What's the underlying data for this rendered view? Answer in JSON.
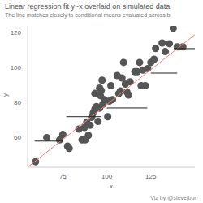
{
  "chart_data": {
    "type": "scatter",
    "title": "Linear regression fit y~x overlaid on simulated data",
    "subtitle": "The line matches closely to conditional means evaluated across b",
    "caption": "Viz by @stevejburr",
    "x_label": "x",
    "y_label": "y",
    "x": [
      59.5,
      65.9,
      73.2,
      75.0,
      77.7,
      78.6,
      84.1,
      85.9,
      87.3,
      87.7,
      88.6,
      89.5,
      90.5,
      91.4,
      92.3,
      93.2,
      93.2,
      94.1,
      95.0,
      95.9,
      95.9,
      96.4,
      96.8,
      97.3,
      97.7,
      98.6,
      100.5,
      101.4,
      102.3,
      103.2,
      105.9,
      106.8,
      107.7,
      108.6,
      109.5,
      110.5,
      111.4,
      112.3,
      113.2,
      115.9,
      117.3,
      118.6,
      119.5,
      120.5,
      121.8,
      123.2,
      125.0,
      126.8,
      127.7,
      131.4,
      133.2,
      135.5,
      137.7,
      140.0,
      143.2
    ],
    "y": [
      46.2,
      60.0,
      58.7,
      61.8,
      55.1,
      53.8,
      64.9,
      58.7,
      65.8,
      58.7,
      68.9,
      61.3,
      67.1,
      71.6,
      74.2,
      85.3,
      76.4,
      77.8,
      69.3,
      88.4,
      76.9,
      84.0,
      87.1,
      92.9,
      79.1,
      81.8,
      72.0,
      80.9,
      89.8,
      81.8,
      95.6,
      85.3,
      86.7,
      94.2,
      103.1,
      90.7,
      86.2,
      84.4,
      92.0,
      97.8,
      97.8,
      103.1,
      89.8,
      98.7,
      89.8,
      99.6,
      103.1,
      104.9,
      111.1,
      114.2,
      109.3,
      113.8,
      122.7,
      112.0,
      112.0
    ],
    "color": "#555555",
    "marker": "circle",
    "xlim": [
      55,
      150
    ],
    "ylim": [
      43,
      124
    ],
    "xticks": [
      75,
      100,
      125
    ],
    "yticks": [
      60,
      80,
      100,
      120
    ],
    "grid": false,
    "fit_line": {
      "x": [
        55,
        150
      ],
      "y": [
        43,
        119
      ],
      "color": "#f08080"
    },
    "conditional_means": {
      "color": "#222222",
      "segments": [
        {
          "x": [
            59,
            75
          ],
          "y": 58
        },
        {
          "x": [
            77,
            97
          ],
          "y": 72
        },
        {
          "x": [
            100,
            123
          ],
          "y": 77
        },
        {
          "x": [
            125,
            140
          ],
          "y": 97
        },
        {
          "x": [
            138,
            150
          ],
          "y": 111
        }
      ]
    }
  }
}
